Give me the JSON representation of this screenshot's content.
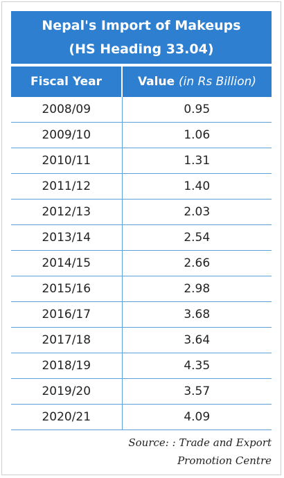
{
  "title": [
    "Nepal's Import of Makeups",
    "(HS Heading 33.04)"
  ],
  "table": {
    "header": [
      "Fiscal Year",
      {
        "label": "Value",
        "unit": "(in Rs Billion)"
      }
    ],
    "rows": [
      [
        "2008/09",
        "0.95"
      ],
      [
        "2009/10",
        "1.06"
      ],
      [
        "2010/11",
        "1.31"
      ],
      [
        "2011/12",
        "1.40"
      ],
      [
        "2012/13",
        "2.03"
      ],
      [
        "2013/14",
        "2.54"
      ],
      [
        "2014/15",
        "2.66"
      ],
      [
        "2015/16",
        "2.98"
      ],
      [
        "2016/17",
        "3.68"
      ],
      [
        "2017/18",
        "3.64"
      ],
      [
        "2018/19",
        "4.35"
      ],
      [
        "2019/20",
        "3.57"
      ],
      [
        "2020/21",
        "4.09"
      ]
    ]
  },
  "source": [
    "Source: : Trade and Export",
    "Promotion Centre"
  ]
}
